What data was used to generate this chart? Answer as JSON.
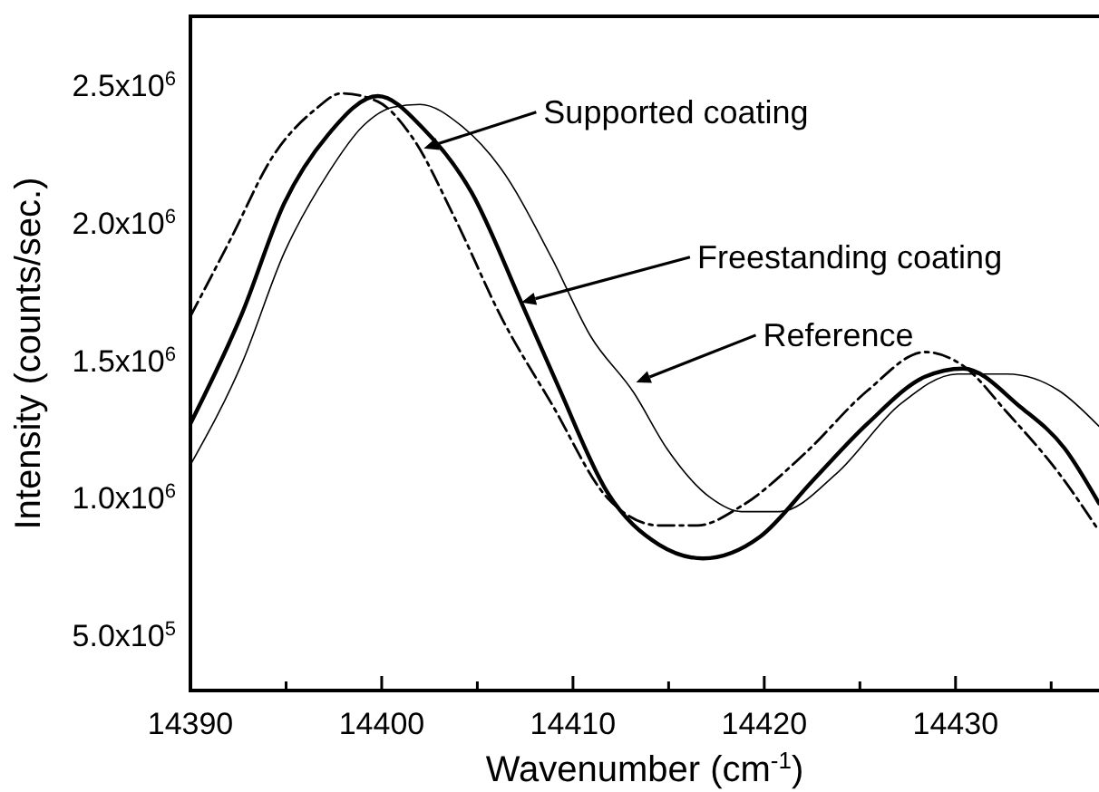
{
  "chart_data": {
    "type": "line",
    "xlabel": "Wavenumber (cm$^{-1}$)",
    "ylabel": "Intensity (counts/sec.)",
    "xlim": [
      14390,
      14437.5
    ],
    "ylim": [
      300000,
      2750000
    ],
    "xticks": [
      14390,
      {
        "value": 14395,
        "label": null
      },
      14400,
      {
        "value": 14405,
        "label": null
      },
      14410,
      {
        "value": 14415,
        "label": null
      },
      14420,
      {
        "value": 14425,
        "label": null
      },
      14430,
      {
        "value": 14435,
        "label": null
      }
    ],
    "yticks": [
      {
        "value": 500000,
        "label": "5.0x10$^{5}$"
      },
      {
        "value": 1000000,
        "label": "1.0x10$^{6}$"
      },
      {
        "value": 1500000,
        "label": "1.5x10$^{6}$"
      },
      {
        "value": 2000000,
        "label": "2.0x10$^{6}$"
      },
      {
        "value": 2500000,
        "label": "2.5x10$^{6}$"
      }
    ],
    "grid": false,
    "marker": "none",
    "series": [
      {
        "color": "#000000",
        "line_style": "solid",
        "x": [
          14390,
          14392.7,
          14394.9,
          14397.2,
          14399.8,
          14402.2,
          14404.7,
          14407.3,
          14409.2,
          14411.8,
          14414.5,
          14416.8,
          14419.8,
          14422.5,
          14425.4,
          14428.4,
          14430.4,
          14433.4,
          14435.7,
          14437.5
        ],
        "values": [
          1270000,
          1670000,
          2070000,
          2320000,
          2460000,
          2340000,
          2110000,
          1710000,
          1410000,
          1020000,
          830000,
          780000,
          860000,
          1060000,
          1270000,
          1440000,
          1470000,
          1330000,
          1180000,
          980000
        ]
      },
      {
        "color": "#000000",
        "line_style": "dashdot",
        "x": [
          14390,
          14392.1,
          14394.3,
          14396.5,
          14397.9,
          14399.8,
          14401.6,
          14403.8,
          14406.3,
          14408.9,
          14411.8,
          14414.5,
          14416.5,
          14418.8,
          14422.1,
          14425.4,
          14428.4,
          14430.4,
          14432.7,
          14435.4,
          14437.5
        ],
        "values": [
          1660000,
          1940000,
          2240000,
          2410000,
          2470000,
          2440000,
          2310000,
          2020000,
          1650000,
          1340000,
          1000000,
          900000,
          900000,
          970000,
          1160000,
          1390000,
          1530000,
          1480000,
          1310000,
          1090000,
          880000
        ]
      },
      {
        "color": "#000000",
        "line_style": "solid",
        "x": [
          14390,
          14392.7,
          14394.9,
          14397.2,
          14399,
          14400.6,
          14402,
          14404.2,
          14406.2,
          14408.9,
          14410.9,
          14413.2,
          14414.9,
          14417.2,
          14418.8,
          14420.8,
          14423.8,
          14427.1,
          14430.1,
          14432.7,
          14435.4,
          14437.5
        ],
        "values": [
          1120000,
          1490000,
          1890000,
          2180000,
          2350000,
          2420000,
          2430000,
          2350000,
          2200000,
          1870000,
          1590000,
          1380000,
          1180000,
          1000000,
          950000,
          950000,
          1090000,
          1340000,
          1450000,
          1450000,
          1390000,
          1260000
        ]
      }
    ],
    "annotations": [
      {
        "text": "Supported coating",
        "x": 14402.2,
        "y": 2270000
      },
      {
        "text": "Freestanding coating",
        "x": 14407.3,
        "y": 1710000
      },
      {
        "text": "Reference",
        "x": 14413.3,
        "y": 1420000
      }
    ]
  }
}
